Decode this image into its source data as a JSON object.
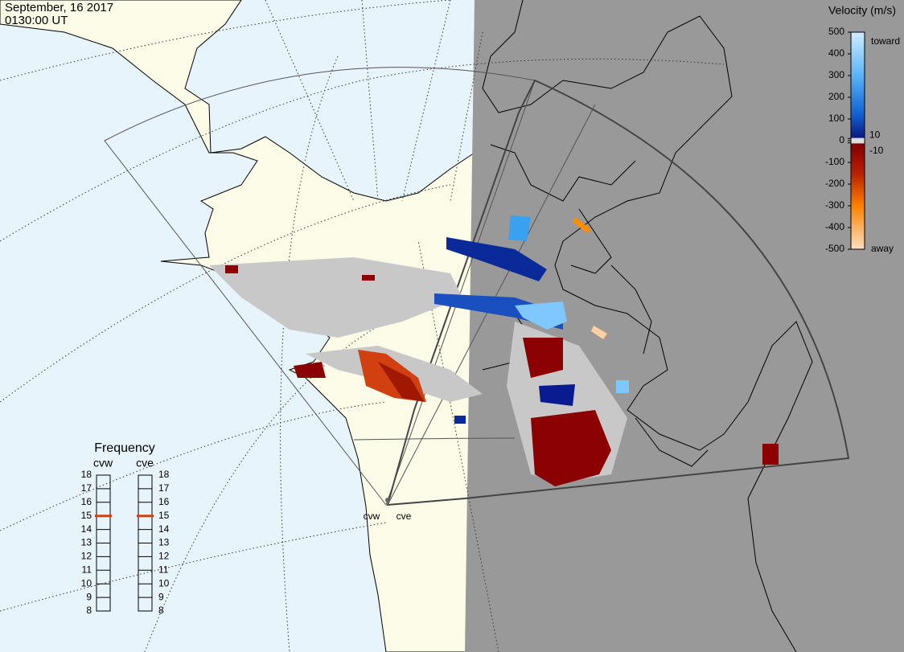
{
  "header": {
    "date": "September, 16 2017",
    "time": "0130:00 UT"
  },
  "colorbar": {
    "title": "Velocity (m/s)",
    "ticks": [
      500,
      400,
      300,
      200,
      100,
      10,
      0,
      -10,
      -100,
      -200,
      -300,
      -400,
      -500
    ],
    "toward": "toward",
    "away": "away"
  },
  "frequency": {
    "title": "Frequency",
    "levels": [
      18,
      17,
      16,
      15,
      14,
      13,
      12,
      11,
      10,
      9,
      8
    ],
    "radars": [
      {
        "name": "cvw",
        "selected": 15
      },
      {
        "name": "cve",
        "selected": 15
      }
    ]
  },
  "sites": [
    "cvw",
    "cve"
  ]
}
